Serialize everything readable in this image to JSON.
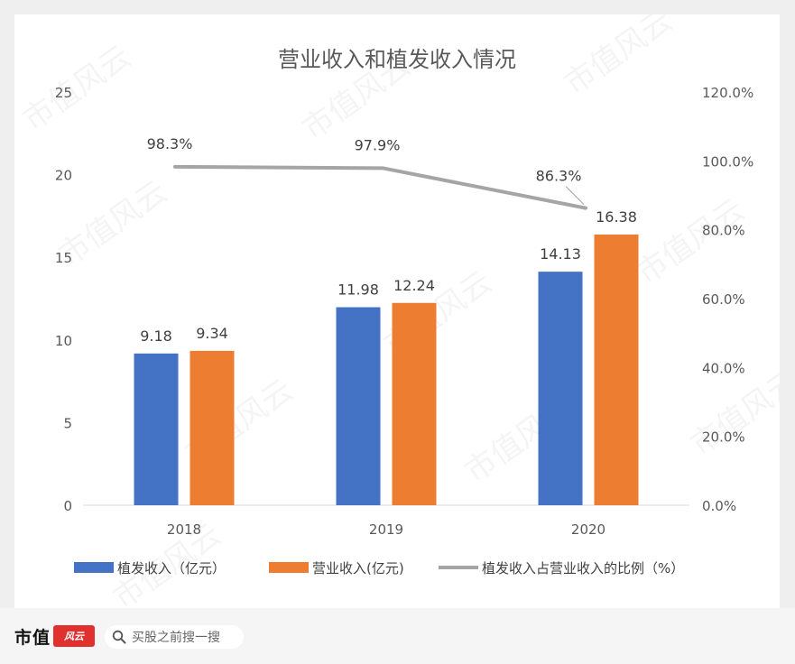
{
  "chart_data": {
    "type": "bar",
    "title": "营业收入和植发收入情况",
    "categories": [
      "2018",
      "2019",
      "2020"
    ],
    "series": [
      {
        "name": "植发收入（亿元）",
        "type": "bar",
        "axis": "left",
        "color": "#4472c4",
        "values": [
          9.18,
          11.98,
          14.13
        ]
      },
      {
        "name": "营业收入(亿元)",
        "type": "bar",
        "axis": "left",
        "color": "#ed7d31",
        "values": [
          9.34,
          12.24,
          16.38
        ]
      },
      {
        "name": "植发收入占营业收入的比例（%）",
        "type": "line",
        "axis": "right",
        "color": "#a5a5a5",
        "values": [
          98.3,
          97.9,
          86.3
        ]
      }
    ],
    "y_left": {
      "min": 0,
      "max": 25,
      "ticks": [
        0,
        5,
        10,
        15,
        20,
        25
      ]
    },
    "y_right": {
      "min": 0,
      "max": 120,
      "ticks": [
        "0.0%",
        "20.0%",
        "40.0%",
        "60.0%",
        "80.0%",
        "100.0%",
        "120.0%"
      ]
    },
    "bar_labels": [
      [
        "9.18",
        "11.98",
        "14.13"
      ],
      [
        "9.34",
        "12.24",
        "16.38"
      ]
    ],
    "line_labels": [
      "98.3%",
      "97.9%",
      "86.3%"
    ],
    "legend_position": "bottom"
  },
  "watermark": "市值风云",
  "footer": {
    "brand": "市值",
    "brand_mark": "风云",
    "search_placeholder": "买股之前搜一搜"
  }
}
